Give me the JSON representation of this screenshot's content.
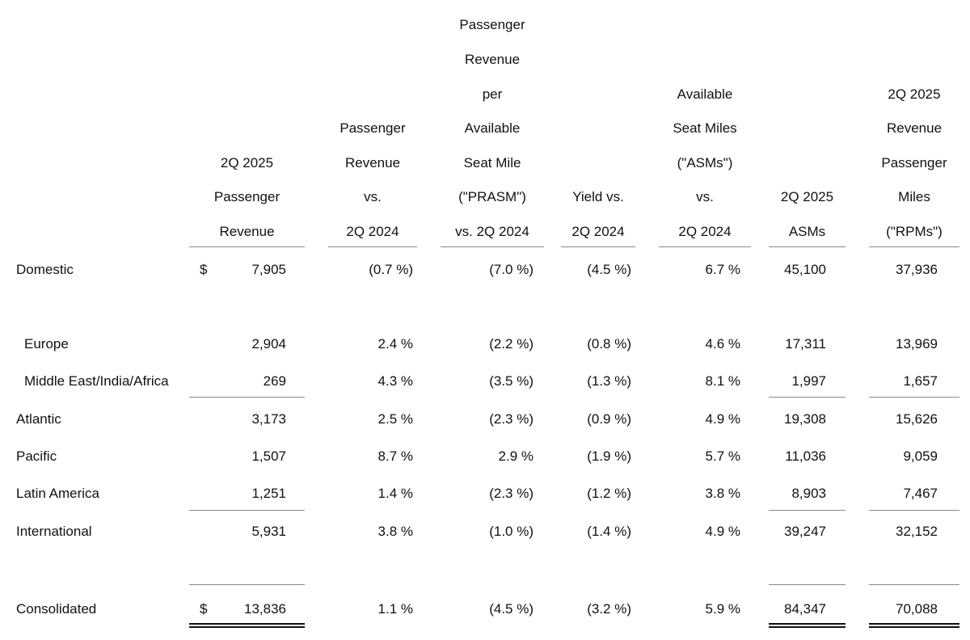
{
  "columns": [
    {
      "key": "rev",
      "lines": [
        "2Q 2025",
        "Passenger",
        "Revenue"
      ]
    },
    {
      "key": "revch",
      "lines": [
        "Passenger",
        "Revenue",
        "vs.",
        "2Q 2024"
      ]
    },
    {
      "key": "prasm",
      "lines": [
        "Passenger",
        "Revenue",
        "per",
        "Available",
        "Seat Mile",
        "(\"PRASM\")",
        "vs. 2Q 2024"
      ]
    },
    {
      "key": "yield",
      "lines": [
        "Yield vs.",
        "2Q 2024"
      ]
    },
    {
      "key": "asmch",
      "lines": [
        "Available",
        "Seat Miles",
        "(\"ASMs\")",
        "vs.",
        "2Q 2024"
      ]
    },
    {
      "key": "asm",
      "lines": [
        "2Q 2025",
        "ASMs"
      ]
    },
    {
      "key": "rpm",
      "lines": [
        "2Q 2025",
        "Revenue",
        "Passenger",
        "Miles",
        "(\"RPMs\")"
      ]
    }
  ],
  "currency_symbol": "$",
  "rows": [
    {
      "label": "Domestic",
      "dollar": true,
      "values": [
        "7,905",
        "(0.7 %)",
        "(7.0 %)",
        "(4.5 %)",
        "6.7 %",
        "45,100",
        "37,936"
      ]
    },
    {
      "label": "Europe",
      "indent": true,
      "values": [
        "2,904",
        "2.4 %",
        "(2.2 %)",
        "(0.8 %)",
        "4.6 %",
        "17,311",
        "13,969"
      ]
    },
    {
      "label": "Middle East/India/Africa",
      "indent": true,
      "values": [
        "269",
        "4.3 %",
        "(3.5 %)",
        "(1.3 %)",
        "8.1 %",
        "1,997",
        "1,657"
      ]
    },
    {
      "label": "Atlantic",
      "values": [
        "3,173",
        "2.5 %",
        "(2.3 %)",
        "(0.9 %)",
        "4.9 %",
        "19,308",
        "15,626"
      ]
    },
    {
      "label": "Pacific",
      "values": [
        "1,507",
        "8.7 %",
        "2.9 %",
        "(1.9 %)",
        "5.7 %",
        "11,036",
        "9,059"
      ]
    },
    {
      "label": "Latin America",
      "values": [
        "1,251",
        "1.4 %",
        "(2.3 %)",
        "(1.2 %)",
        "3.8 %",
        "8,903",
        "7,467"
      ]
    },
    {
      "label": "International",
      "values": [
        "5,931",
        "3.8 %",
        "(1.0 %)",
        "(1.4 %)",
        "4.9 %",
        "39,247",
        "32,152"
      ]
    },
    {
      "label": "Consolidated",
      "dollar": true,
      "values": [
        "13,836",
        "1.1 %",
        "(4.5 %)",
        "(3.2 %)",
        "5.9 %",
        "84,347",
        "70,088"
      ]
    }
  ]
}
